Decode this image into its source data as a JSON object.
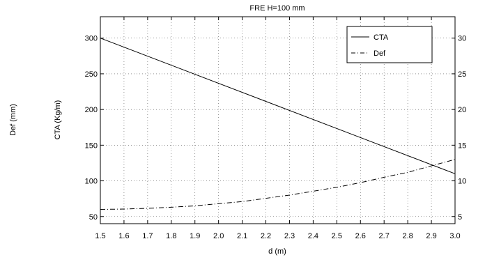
{
  "chart_data": {
    "type": "line",
    "title": "FRE H=100 mm",
    "xlabel": "d (m)",
    "ylabel_left_outer": "Def (mm)",
    "ylabel_left_inner": "CTA (Kg/m)",
    "xlim": [
      1.5,
      3.0
    ],
    "ylim_left": [
      40,
      330
    ],
    "ylim_right": [
      4,
      33
    ],
    "x_ticks": [
      "1.5",
      "1.6",
      "1.7",
      "1.8",
      "1.9",
      "2.0",
      "2.1",
      "2.2",
      "2.3",
      "2.4",
      "2.5",
      "2.6",
      "2.7",
      "2.8",
      "2.9",
      "3.0"
    ],
    "y_ticks_left": [
      "50",
      "100",
      "150",
      "200",
      "250",
      "300"
    ],
    "y_ticks_right": [
      "5",
      "10",
      "15",
      "20",
      "25",
      "30"
    ],
    "grid": true,
    "legend_position": "top-right",
    "series": [
      {
        "name": "CTA",
        "axis": "left",
        "line_style": "solid",
        "x": [
          1.5,
          3.0
        ],
        "y": [
          300,
          110
        ]
      },
      {
        "name": "Def",
        "axis": "right",
        "line_style": "dash-dot",
        "x": [
          1.5,
          1.6,
          1.7,
          1.8,
          1.9,
          2.0,
          2.1,
          2.2,
          2.3,
          2.4,
          2.5,
          2.6,
          2.7,
          2.8,
          2.9,
          3.0
        ],
        "y": [
          6.0,
          6.05,
          6.15,
          6.3,
          6.5,
          6.8,
          7.1,
          7.55,
          8.0,
          8.55,
          9.1,
          9.75,
          10.5,
          11.2,
          12.1,
          13.0
        ]
      }
    ]
  }
}
